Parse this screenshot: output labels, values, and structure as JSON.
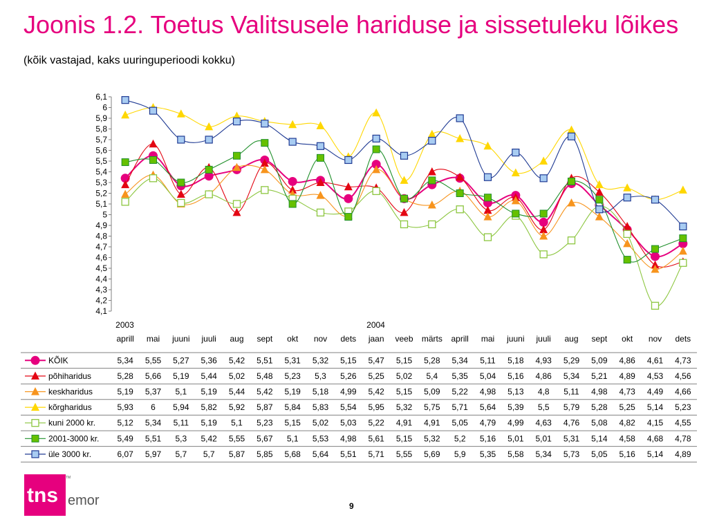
{
  "slide": {
    "title": "Joonis 1.2. Toetus Valitsusele hariduse ja sissetuleku lõikes",
    "subtitle": "(kõik vastajad, kaks uuringuperioodi kokku)",
    "page_number": "9",
    "logo": {
      "part1": "tns",
      "part2": "emor",
      "tm": "TM",
      "brand_color": "#e6007e"
    }
  },
  "chart_data": {
    "type": "line",
    "title": "Joonis 1.2. Toetus Valitsusele hariduse ja sissetuleku lõikes",
    "ylim": [
      4.1,
      6.1
    ],
    "ytick_labels": [
      "4,1",
      "4,2",
      "4,3",
      "4,4",
      "4,5",
      "4,6",
      "4,7",
      "4,8",
      "4,9",
      "5",
      "5,1",
      "5,2",
      "5,3",
      "5,4",
      "5,5",
      "5,6",
      "5,7",
      "5,8",
      "5,9",
      "6",
      "6,1"
    ],
    "year_labels": [
      {
        "index": 0,
        "label": "2003"
      },
      {
        "index": 9,
        "label": "2004"
      }
    ],
    "categories": [
      "aprill",
      "mai",
      "juuni",
      "juuli",
      "aug",
      "sept",
      "okt",
      "nov",
      "dets",
      "jaan",
      "veeb",
      "märts",
      "aprill",
      "mai",
      "juuni",
      "juuli",
      "aug",
      "sept",
      "okt",
      "nov",
      "dets"
    ],
    "grid": false,
    "legend": "table-below",
    "series": [
      {
        "name": "KÕIK",
        "color": "#e6007e",
        "marker": "circle",
        "values": [
          5.34,
          5.55,
          5.27,
          5.36,
          5.42,
          5.51,
          5.31,
          5.32,
          5.15,
          5.47,
          5.15,
          5.28,
          5.34,
          5.11,
          5.18,
          4.93,
          5.29,
          5.09,
          4.86,
          4.61,
          4.73
        ],
        "labels": [
          "5,34",
          "5,55",
          "5,27",
          "5,36",
          "5,42",
          "5,51",
          "5,31",
          "5,32",
          "5,15",
          "5,47",
          "5,15",
          "5,28",
          "5,34",
          "5,11",
          "5,18",
          "4,93",
          "5,29",
          "5,09",
          "4,86",
          "4,61",
          "4,73"
        ]
      },
      {
        "name": "põhiharidus",
        "color": "#e30613",
        "marker": "triangle",
        "values": [
          5.28,
          5.66,
          5.19,
          5.44,
          5.02,
          5.48,
          5.23,
          5.3,
          5.26,
          5.25,
          5.02,
          5.4,
          5.35,
          5.04,
          5.16,
          4.86,
          5.34,
          5.21,
          4.89,
          4.53,
          4.56
        ],
        "labels": [
          "5,28",
          "5,66",
          "5,19",
          "5,44",
          "5,02",
          "5,48",
          "5,23",
          "5,3",
          "5,26",
          "5,25",
          "5,02",
          "5,4",
          "5,35",
          "5,04",
          "5,16",
          "4,86",
          "5,34",
          "5,21",
          "4,89",
          "4,53",
          "4,56"
        ]
      },
      {
        "name": "keskharidus",
        "color": "#f7941d",
        "marker": "triangle",
        "values": [
          5.19,
          5.37,
          5.1,
          5.19,
          5.44,
          5.42,
          5.19,
          5.18,
          4.99,
          5.42,
          5.15,
          5.09,
          5.22,
          4.98,
          5.13,
          4.8,
          5.11,
          4.98,
          4.73,
          4.49,
          4.66
        ],
        "labels": [
          "5,19",
          "5,37",
          "5,1",
          "5,19",
          "5,44",
          "5,42",
          "5,19",
          "5,18",
          "4,99",
          "5,42",
          "5,15",
          "5,09",
          "5,22",
          "4,98",
          "5,13",
          "4,8",
          "5,11",
          "4,98",
          "4,73",
          "4,49",
          "4,66"
        ]
      },
      {
        "name": "kõrgharidus",
        "color": "#ffd700",
        "marker": "triangle",
        "values": [
          5.93,
          6,
          5.94,
          5.82,
          5.92,
          5.87,
          5.84,
          5.83,
          5.54,
          5.95,
          5.32,
          5.75,
          5.71,
          5.64,
          5.39,
          5.5,
          5.79,
          5.28,
          5.25,
          5.14,
          5.23
        ],
        "labels": [
          "5,93",
          "6",
          "5,94",
          "5,82",
          "5,92",
          "5,87",
          "5,84",
          "5,83",
          "5,54",
          "5,95",
          "5,32",
          "5,75",
          "5,71",
          "5,64",
          "5,39",
          "5,5",
          "5,79",
          "5,28",
          "5,25",
          "5,14",
          "5,23"
        ]
      },
      {
        "name": "kuni 2000 kr.",
        "color": "#8cc63f",
        "marker": "square-open",
        "values": [
          5.12,
          5.34,
          5.11,
          5.19,
          5.1,
          5.23,
          5.15,
          5.02,
          5.03,
          5.22,
          4.91,
          4.91,
          5.05,
          4.79,
          4.99,
          4.63,
          4.76,
          5.08,
          4.82,
          4.15,
          4.55
        ],
        "labels": [
          "5,12",
          "5,34",
          "5,11",
          "5,19",
          "5,1",
          "5,23",
          "5,15",
          "5,02",
          "5,03",
          "5,22",
          "4,91",
          "4,91",
          "5,05",
          "4,79",
          "4,99",
          "4,63",
          "4,76",
          "5,08",
          "4,82",
          "4,15",
          "4,55"
        ]
      },
      {
        "name": "2001-3000 kr.",
        "color": "#1f8f2a",
        "marker": "square",
        "values": [
          5.49,
          5.51,
          5.3,
          5.42,
          5.55,
          5.67,
          5.1,
          5.53,
          4.98,
          5.61,
          5.15,
          5.32,
          5.2,
          5.16,
          5.01,
          5.01,
          5.31,
          5.14,
          4.58,
          4.68,
          4.78
        ],
        "labels": [
          "5,49",
          "5,51",
          "5,3",
          "5,42",
          "5,55",
          "5,67",
          "5,1",
          "5,53",
          "4,98",
          "5,61",
          "5,15",
          "5,32",
          "5,2",
          "5,16",
          "5,01",
          "5,01",
          "5,31",
          "5,14",
          "4,58",
          "4,68",
          "4,78"
        ]
      },
      {
        "name": "üle 3000 kr.",
        "color": "#1f3a93",
        "marker": "square-blue",
        "values": [
          6.07,
          5.97,
          5.7,
          5.7,
          5.87,
          5.85,
          5.68,
          5.64,
          5.51,
          5.71,
          5.55,
          5.69,
          5.9,
          5.35,
          5.58,
          5.34,
          5.73,
          5.05,
          5.16,
          5.14,
          4.89
        ],
        "labels": [
          "6,07",
          "5,97",
          "5,7",
          "5,7",
          "5,87",
          "5,85",
          "5,68",
          "5,64",
          "5,51",
          "5,71",
          "5,55",
          "5,69",
          "5,9",
          "5,35",
          "5,58",
          "5,34",
          "5,73",
          "5,05",
          "5,16",
          "5,14",
          "4,89"
        ]
      }
    ]
  }
}
